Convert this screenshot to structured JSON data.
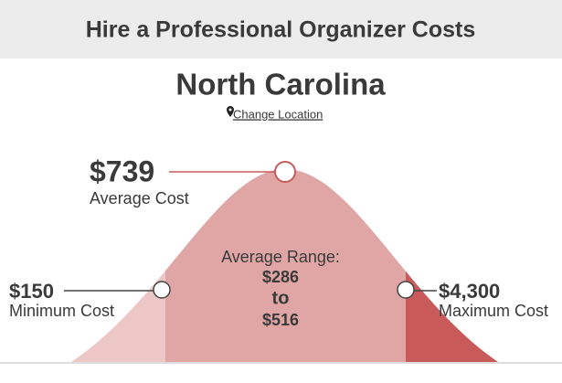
{
  "header": {
    "title": "Hire a Professional Organizer Costs"
  },
  "location": {
    "name": "North Carolina",
    "link": "Change Location"
  },
  "average": {
    "value": "$739",
    "label": "Average Cost"
  },
  "range": {
    "label": "Average Range:",
    "low": "$286",
    "connector": "to",
    "high": "$516"
  },
  "minimum": {
    "value": "$150",
    "label": "Minimum Cost"
  },
  "maximum": {
    "value": "$4,300",
    "label": "Maximum Cost"
  }
}
